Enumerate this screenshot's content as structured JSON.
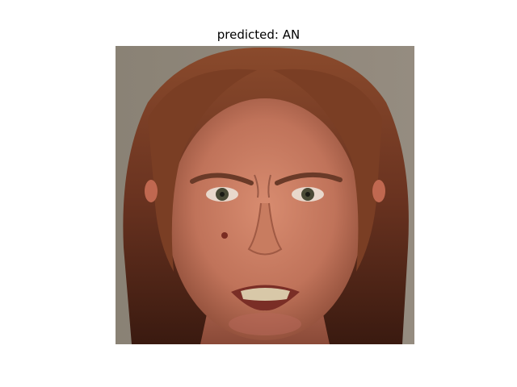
{
  "figure": {
    "title": "predicted: AN",
    "image": {
      "subject": "face",
      "background_color": "#8c8478",
      "hair_color": "#6a3a22",
      "skin_color": "#c47a60"
    }
  }
}
